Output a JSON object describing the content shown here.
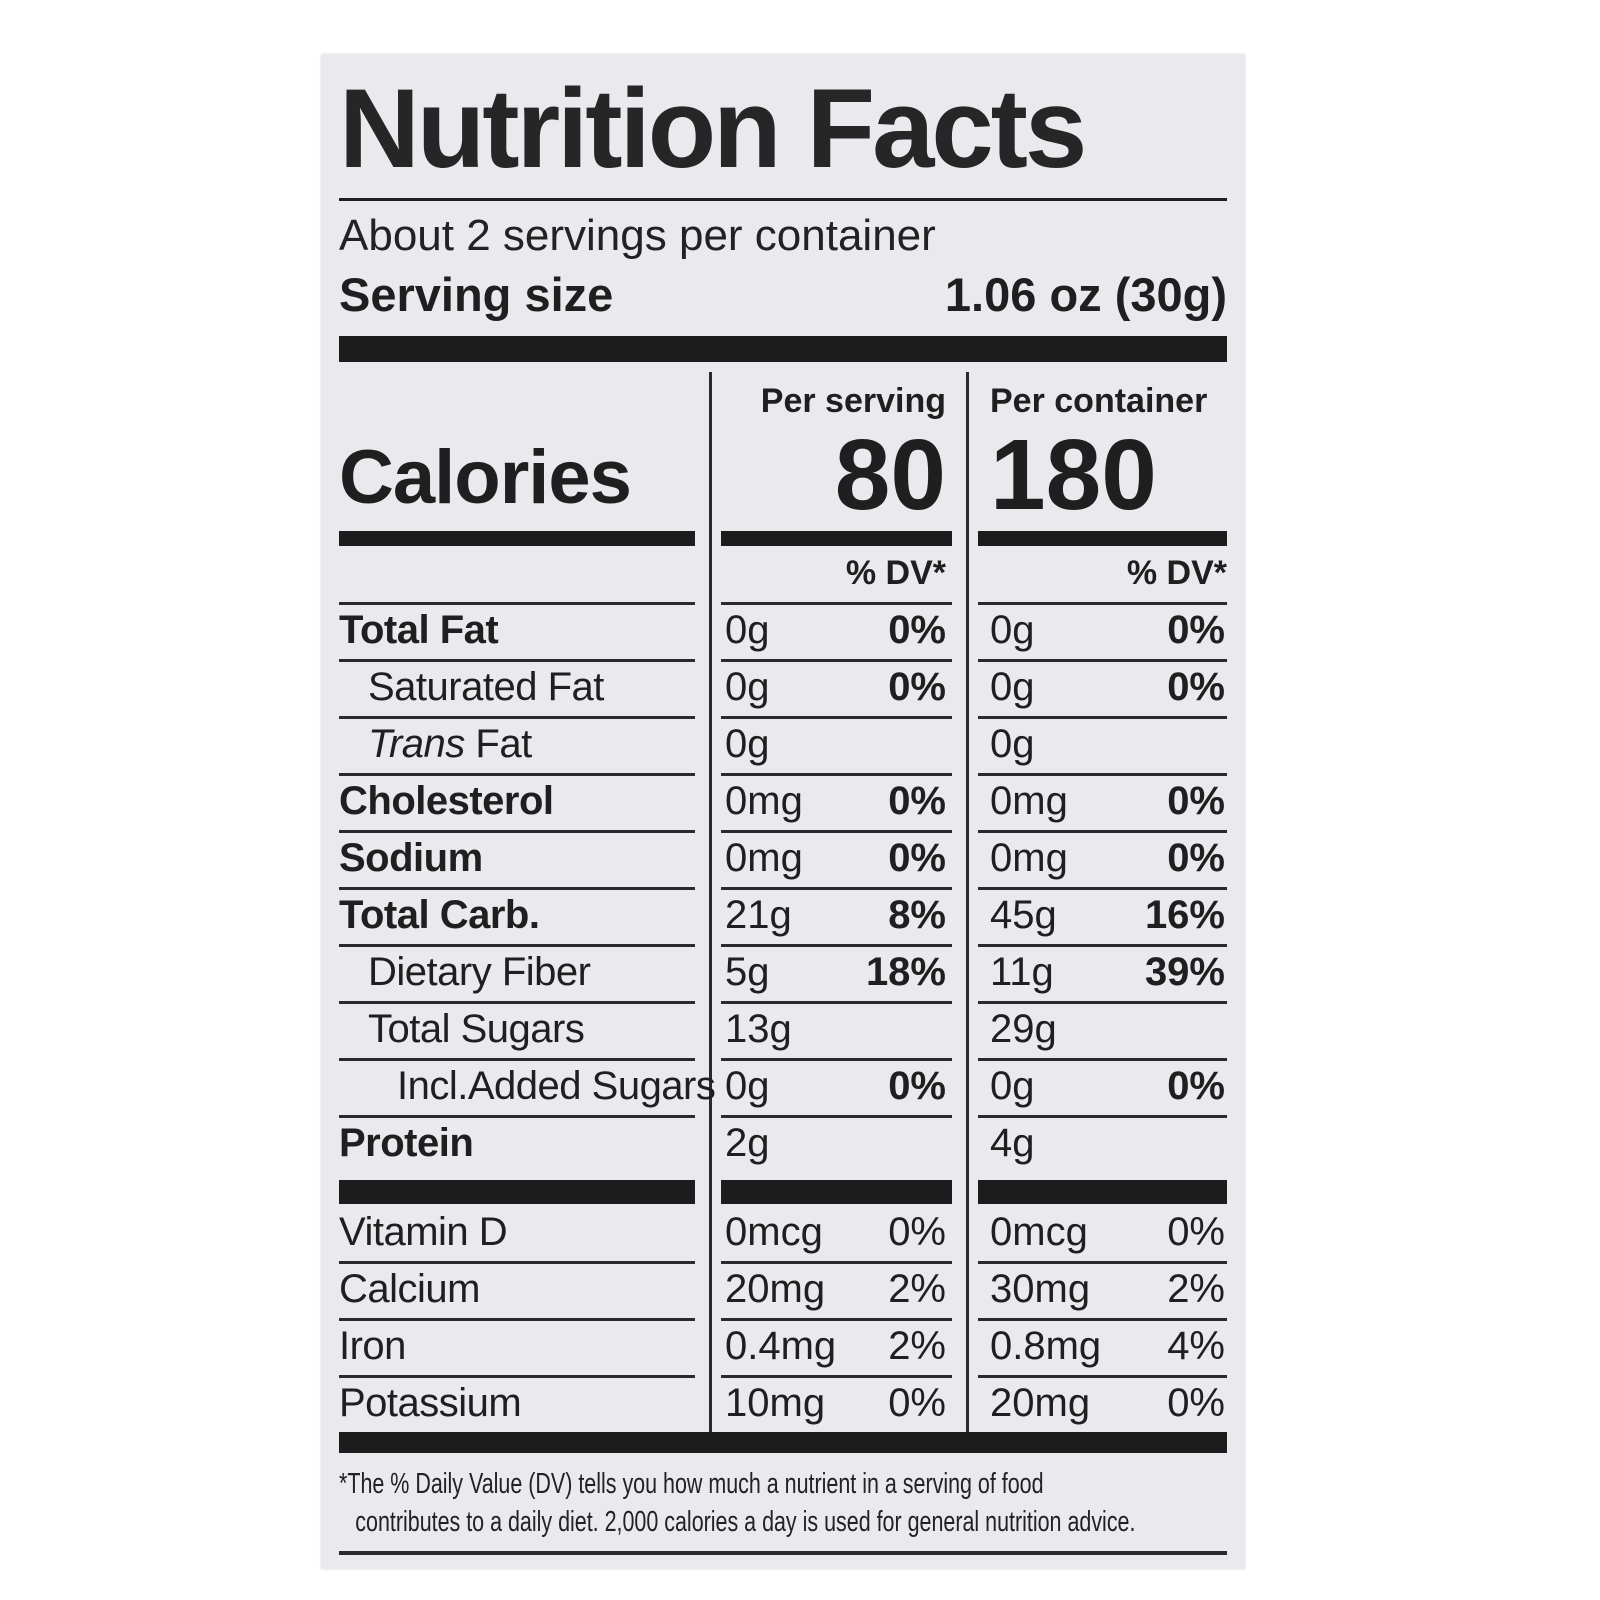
{
  "label": {
    "title": "Nutrition Facts",
    "servings_per_container": "About 2 servings per container",
    "serving_size_label": "Serving size",
    "serving_size_value": "1.06 oz (30g)",
    "calories": {
      "label": "Calories",
      "serving_header": "Per serving",
      "serving_value": "80",
      "container_header": "Per container",
      "container_value": "180",
      "dv_header_serving": "% DV*",
      "dv_header_container": "% DV*"
    },
    "nutrient_rows": [
      {
        "label": "Total Fat",
        "bold": true,
        "indent": 0,
        "serving_amount": "0g",
        "serving_dv": "0%",
        "container_amount": "0g",
        "container_dv": "0%"
      },
      {
        "label": "Saturated Fat",
        "bold": false,
        "indent": 1,
        "serving_amount": "0g",
        "serving_dv": "0%",
        "container_amount": "0g",
        "container_dv": "0%"
      },
      {
        "italic_prefix": "Trans",
        "label": " Fat",
        "bold": false,
        "indent": 1,
        "serving_amount": "0g",
        "serving_dv": "",
        "container_amount": "0g",
        "container_dv": ""
      },
      {
        "label": "Cholesterol",
        "bold": true,
        "indent": 0,
        "serving_amount": "0mg",
        "serving_dv": "0%",
        "container_amount": "0mg",
        "container_dv": "0%"
      },
      {
        "label": "Sodium",
        "bold": true,
        "indent": 0,
        "serving_amount": "0mg",
        "serving_dv": "0%",
        "container_amount": "0mg",
        "container_dv": "0%"
      },
      {
        "label": "Total Carb.",
        "bold": true,
        "indent": 0,
        "serving_amount": "21g",
        "serving_dv": "8%",
        "container_amount": "45g",
        "container_dv": "16%"
      },
      {
        "label": "Dietary Fiber",
        "bold": false,
        "indent": 1,
        "serving_amount": "5g",
        "serving_dv": "18%",
        "container_amount": "11g",
        "container_dv": "39%"
      },
      {
        "label": "Total Sugars",
        "bold": false,
        "indent": 1,
        "serving_amount": "13g",
        "serving_dv": "",
        "container_amount": "29g",
        "container_dv": ""
      },
      {
        "label": "Incl.Added Sugars",
        "bold": false,
        "indent": 2,
        "serving_amount": "0g",
        "serving_dv": "0%",
        "container_amount": "0g",
        "container_dv": "0%"
      },
      {
        "label": "Protein",
        "bold": true,
        "indent": 0,
        "serving_amount": "2g",
        "serving_dv": "",
        "container_amount": "4g",
        "container_dv": ""
      }
    ],
    "vitamin_rows": [
      {
        "label": "Vitamin D",
        "serving_amount": "0mcg",
        "serving_dv": "0%",
        "container_amount": "0mcg",
        "container_dv": "0%"
      },
      {
        "label": "Calcium",
        "serving_amount": "20mg",
        "serving_dv": "2%",
        "container_amount": "30mg",
        "container_dv": "2%"
      },
      {
        "label": "Iron",
        "serving_amount": "0.4mg",
        "serving_dv": "2%",
        "container_amount": "0.8mg",
        "container_dv": "4%"
      },
      {
        "label": "Potassium",
        "serving_amount": "10mg",
        "serving_dv": "0%",
        "container_amount": "20mg",
        "container_dv": "0%"
      }
    ],
    "footnote_line1": "*The % Daily Value (DV) tells you how much a nutrient in a serving of food",
    "footnote_line2": "contributes to a daily diet. 2,000 calories a day is used for general nutrition advice.",
    "colors": {
      "label_bg": "#e9e9ee",
      "ink": "#1f1f1f"
    }
  }
}
